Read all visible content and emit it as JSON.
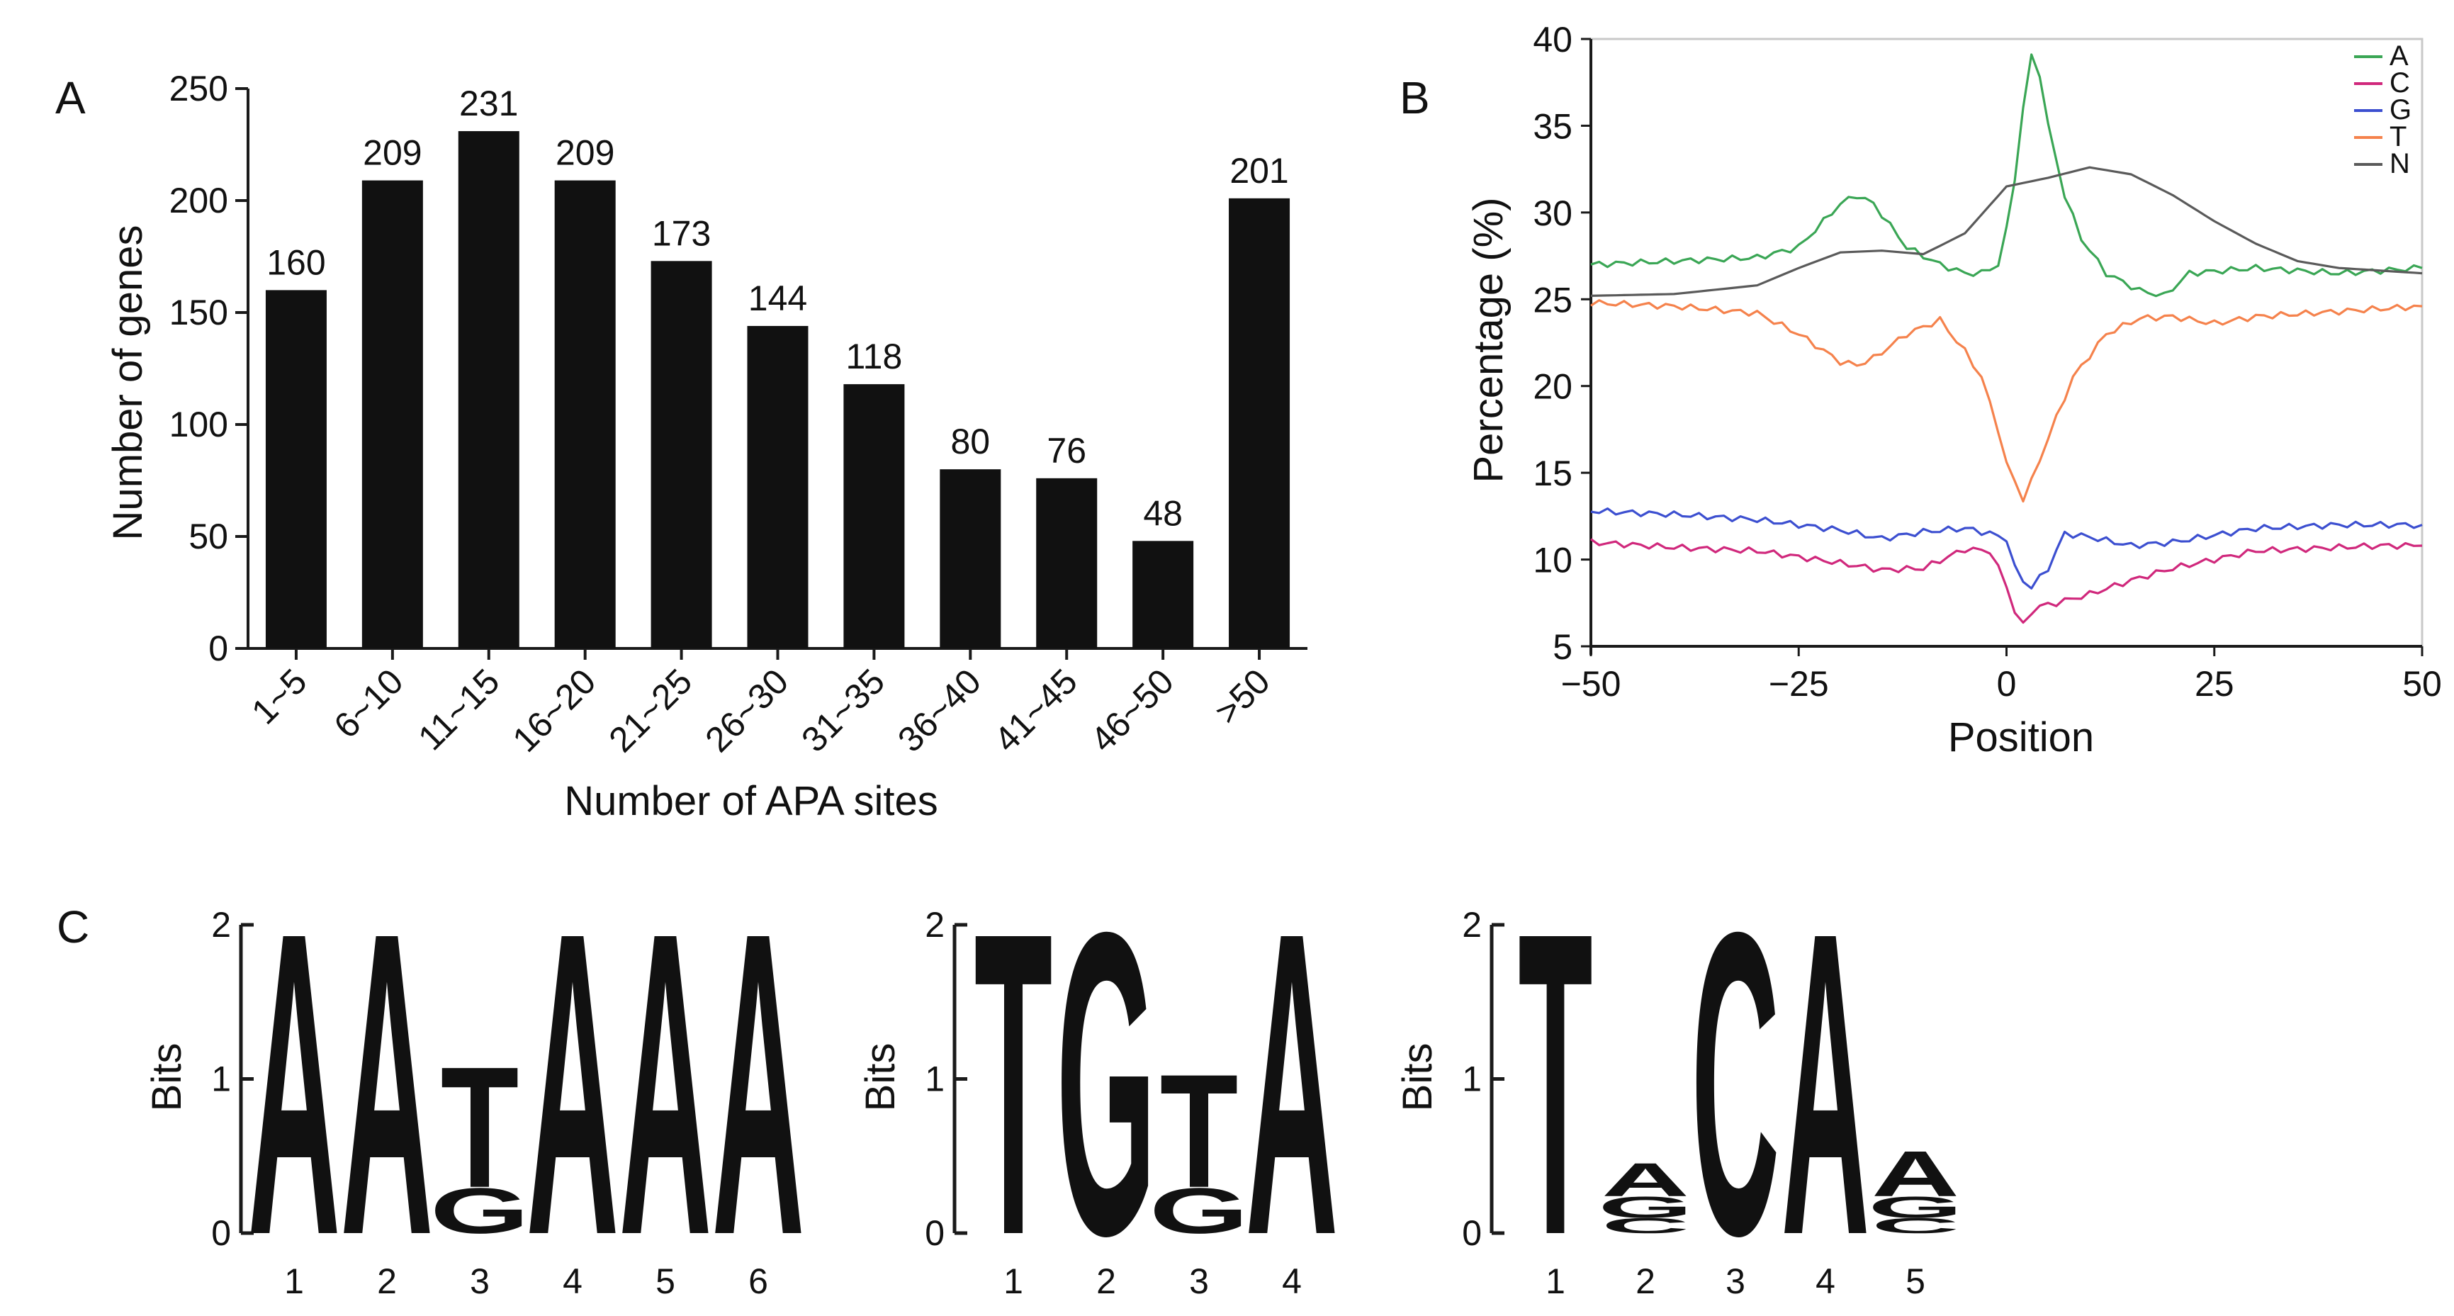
{
  "panel_labels": [
    "A",
    "B",
    "C"
  ],
  "colors": {
    "bar": "#111111",
    "axis": "#1a1a1a",
    "A": "#3aa655",
    "C": "#d0287c",
    "G": "#3c4fd0",
    "T": "#f5824c",
    "N": "#5a5a5a",
    "logo_A": "#d62b27",
    "logo_C": "#28379a",
    "logo_G": "#f5a623",
    "logo_T": "#2e7d32"
  },
  "chart_data": [
    {
      "id": "A",
      "type": "bar",
      "title": "",
      "xlabel": "Number of APA sites",
      "ylabel": "Number of genes",
      "categories": [
        "1~5",
        "6~10",
        "11~15",
        "16~20",
        "21~25",
        "26~30",
        "31~35",
        "36~40",
        "41~45",
        "46~50",
        ">50"
      ],
      "values": [
        160,
        209,
        231,
        209,
        173,
        144,
        118,
        80,
        76,
        48,
        201
      ],
      "data_labels": [
        "160",
        "209",
        "231",
        "209",
        "173",
        "144",
        "118",
        "80",
        "76",
        "48",
        "201"
      ],
      "ylim": [
        0,
        250
      ],
      "yticks": [
        0,
        50,
        100,
        150,
        200,
        250
      ],
      "ytick_labels": [
        "0",
        "50",
        "100",
        "150",
        "200",
        "250"
      ]
    },
    {
      "id": "B",
      "type": "line",
      "title": "",
      "xlabel": "Position",
      "ylabel": "Percentage (%)",
      "xlim": [
        -50,
        50
      ],
      "ylim": [
        5,
        40
      ],
      "xticks": [
        -50,
        -25,
        0,
        25,
        50
      ],
      "xtick_labels": [
        "−50",
        "−25",
        "0",
        "25",
        "50"
      ],
      "yticks": [
        5,
        10,
        15,
        20,
        25,
        30,
        35,
        40
      ],
      "ytick_labels": [
        "5",
        "10",
        "15",
        "20",
        "25",
        "30",
        "35",
        "40"
      ],
      "legend_position": "top-right",
      "series": [
        {
          "name": "A",
          "x": [
            -50,
            -40,
            -30,
            -25,
            -20,
            -18,
            -16,
            -12,
            -8,
            -5,
            -3,
            -1,
            0,
            1,
            2,
            3,
            4,
            5,
            7,
            9,
            12,
            16,
            19,
            22,
            30,
            40,
            50
          ],
          "y": [
            27,
            27.2,
            27.4,
            28,
            30.5,
            31,
            30.5,
            28,
            27,
            26.5,
            26.5,
            27,
            29,
            32,
            36,
            39,
            38,
            35,
            31,
            28.5,
            26.5,
            25.5,
            25.2,
            26.5,
            26.8,
            26.5,
            26.8
          ]
        },
        {
          "name": "C",
          "x": [
            -50,
            -40,
            -30,
            -20,
            -15,
            -10,
            -5,
            -2,
            0,
            1,
            2,
            3,
            4,
            6,
            10,
            15,
            20,
            25,
            30,
            35,
            40,
            45,
            50
          ],
          "y": [
            11,
            10.7,
            10.5,
            9.8,
            9.4,
            9.5,
            10.6,
            10.5,
            8.5,
            7,
            6.2,
            7,
            7.3,
            7.5,
            8,
            8.8,
            9.5,
            10,
            10.5,
            10.6,
            10.7,
            10.8,
            10.8
          ]
        },
        {
          "name": "G",
          "x": [
            -50,
            -40,
            -30,
            -20,
            -15,
            -10,
            -5,
            -2,
            0,
            1,
            2,
            3,
            5,
            7,
            10,
            15,
            20,
            25,
            30,
            40,
            50
          ],
          "y": [
            12.8,
            12.6,
            12.3,
            11.7,
            11.2,
            11.6,
            11.8,
            11.5,
            11.2,
            9.5,
            8.8,
            8.4,
            9.5,
            11.5,
            11.3,
            10.8,
            11,
            11.4,
            11.8,
            12,
            12
          ]
        },
        {
          "name": "T",
          "x": [
            -50,
            -40,
            -30,
            -25,
            -20,
            -18,
            -16,
            -12,
            -8,
            -5,
            -3,
            -1,
            0,
            1,
            2,
            3,
            5,
            8,
            12,
            16,
            20,
            25,
            30,
            40,
            50
          ],
          "y": [
            24.8,
            24.6,
            24.2,
            23,
            21.4,
            21.2,
            21.6,
            23,
            23.8,
            22,
            20.5,
            17.5,
            15.5,
            14.5,
            13.5,
            14.5,
            17,
            20.5,
            23,
            23.9,
            24,
            23.6,
            24,
            24.3,
            24.6
          ]
        },
        {
          "name": "N",
          "x": [
            -50,
            -40,
            -30,
            -25,
            -20,
            -15,
            -10,
            -5,
            0,
            5,
            10,
            15,
            20,
            25,
            30,
            35,
            40,
            50
          ],
          "y": [
            25.2,
            25.3,
            25.8,
            26.8,
            27.7,
            27.8,
            27.6,
            28.8,
            31.5,
            32,
            32.6,
            32.2,
            31,
            29.5,
            28.2,
            27.2,
            26.8,
            26.5
          ]
        }
      ]
    },
    {
      "id": "C",
      "type": "sequence-logo",
      "ylabel": "Bits",
      "ylim": [
        0,
        2
      ],
      "yticks": [
        0,
        1,
        2
      ],
      "ytick_labels": [
        "0",
        "1",
        "2"
      ],
      "motifs": [
        {
          "positions": [
            {
              "label": "1",
              "letters": [
                {
                  "base": "A",
                  "bits": 2
                }
              ]
            },
            {
              "label": "2",
              "letters": [
                {
                  "base": "A",
                  "bits": 2
                }
              ]
            },
            {
              "label": "3",
              "letters": [
                {
                  "base": "G",
                  "bits": 0.3
                },
                {
                  "base": "T",
                  "bits": 0.8
                }
              ]
            },
            {
              "label": "4",
              "letters": [
                {
                  "base": "A",
                  "bits": 2
                }
              ]
            },
            {
              "label": "5",
              "letters": [
                {
                  "base": "A",
                  "bits": 2
                }
              ]
            },
            {
              "label": "6",
              "letters": [
                {
                  "base": "A",
                  "bits": 2
                }
              ]
            }
          ]
        },
        {
          "positions": [
            {
              "label": "1",
              "letters": [
                {
                  "base": "T",
                  "bits": 2
                }
              ]
            },
            {
              "label": "2",
              "letters": [
                {
                  "base": "G",
                  "bits": 2
                }
              ]
            },
            {
              "label": "3",
              "letters": [
                {
                  "base": "G",
                  "bits": 0.3
                },
                {
                  "base": "T",
                  "bits": 0.75
                }
              ]
            },
            {
              "label": "4",
              "letters": [
                {
                  "base": "A",
                  "bits": 2
                }
              ]
            }
          ]
        },
        {
          "positions": [
            {
              "label": "1",
              "letters": [
                {
                  "base": "T",
                  "bits": 2
                }
              ]
            },
            {
              "label": "2",
              "letters": [
                {
                  "base": "C",
                  "bits": 0.1
                },
                {
                  "base": "G",
                  "bits": 0.14
                },
                {
                  "base": "A",
                  "bits": 0.22
                }
              ]
            },
            {
              "label": "3",
              "letters": [
                {
                  "base": "C",
                  "bits": 2
                }
              ]
            },
            {
              "label": "4",
              "letters": [
                {
                  "base": "A",
                  "bits": 2
                }
              ]
            },
            {
              "label": "5",
              "letters": [
                {
                  "base": "C",
                  "bits": 0.1
                },
                {
                  "base": "G",
                  "bits": 0.14
                },
                {
                  "base": "A",
                  "bits": 0.3
                }
              ]
            }
          ]
        }
      ]
    }
  ]
}
